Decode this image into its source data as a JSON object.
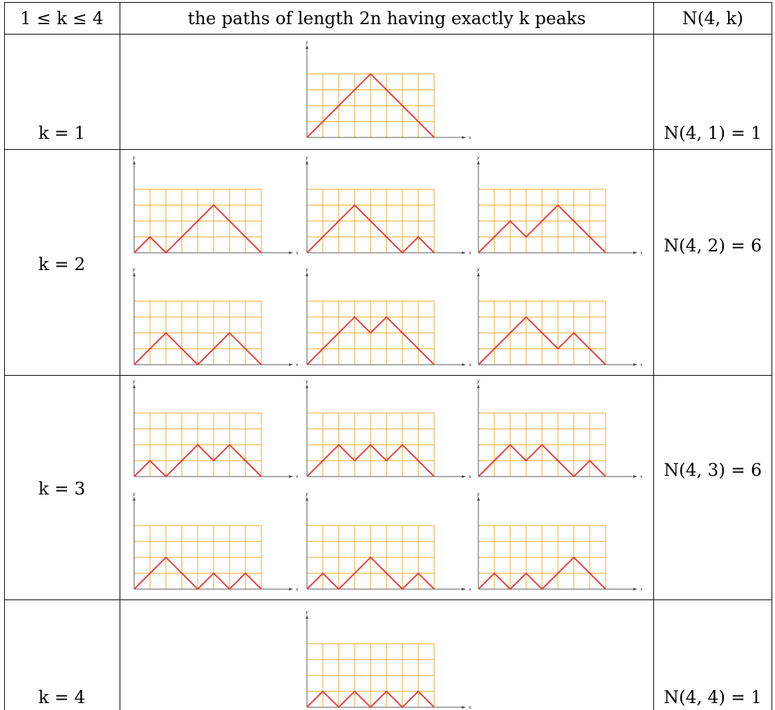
{
  "header": {
    "col1": "1 ≤ k ≤ 4",
    "col2": "the paths of length 2n having exactly k peaks",
    "col3": "N(4, k)"
  },
  "rows": [
    {
      "label": "k = 1",
      "count": "N(4, 1) = 1",
      "paths": [
        [
          1,
          1,
          1,
          1,
          -1,
          -1,
          -1,
          -1
        ]
      ]
    },
    {
      "label": "k = 2",
      "count": "N(4, 2) = 6",
      "paths": [
        [
          1,
          -1,
          1,
          1,
          1,
          -1,
          -1,
          -1
        ],
        [
          1,
          1,
          1,
          -1,
          -1,
          -1,
          1,
          -1
        ],
        [
          1,
          1,
          -1,
          1,
          1,
          -1,
          -1,
          -1
        ],
        [
          1,
          1,
          -1,
          -1,
          1,
          1,
          -1,
          -1
        ],
        [
          1,
          1,
          1,
          -1,
          1,
          -1,
          -1,
          -1
        ],
        [
          1,
          1,
          1,
          -1,
          -1,
          1,
          -1,
          -1
        ]
      ]
    },
    {
      "label": "k = 3",
      "count": "N(4, 3) = 6",
      "paths": [
        [
          1,
          -1,
          1,
          1,
          -1,
          1,
          -1,
          -1
        ],
        [
          1,
          1,
          -1,
          1,
          -1,
          1,
          -1,
          -1
        ],
        [
          1,
          1,
          -1,
          1,
          -1,
          -1,
          1,
          -1
        ],
        [
          1,
          1,
          -1,
          -1,
          1,
          -1,
          1,
          -1
        ],
        [
          1,
          -1,
          1,
          1,
          -1,
          -1,
          1,
          -1
        ],
        [
          1,
          -1,
          1,
          -1,
          1,
          1,
          -1,
          -1
        ]
      ]
    },
    {
      "label": "k = 4",
      "count": "N(4, 4) = 1",
      "paths": [
        [
          1,
          -1,
          1,
          -1,
          1,
          -1,
          1,
          -1
        ]
      ]
    }
  ],
  "axis_labels": {
    "x": "x",
    "y": "y"
  },
  "colors": {
    "grid": "#f5a623",
    "path": "#ee3b3b",
    "axis": "#555555",
    "rule": "#000000"
  }
}
